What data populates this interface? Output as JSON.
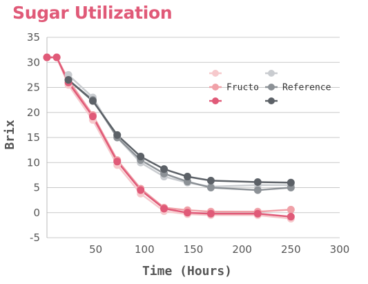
{
  "chart_data": {
    "type": "line",
    "title": "Sugar Utilization",
    "xlabel": "Time (Hours)",
    "ylabel": "Brix",
    "xlim": [
      0,
      300
    ],
    "ylim": [
      -5,
      35
    ],
    "xticks": [
      50,
      100,
      150,
      200,
      250,
      300
    ],
    "yticks": [
      -5,
      0,
      5,
      10,
      15,
      20,
      25,
      30,
      35
    ],
    "grid": "horizontal",
    "legend_position": "top-right",
    "legend_columns": [
      {
        "header": "",
        "entries": [
          "",
          "Fructo",
          ""
        ]
      },
      {
        "header": "",
        "entries": [
          "",
          "Reference",
          ""
        ]
      }
    ],
    "series": [
      {
        "name": "",
        "group": "Fructo",
        "color": "#f6c9cc",
        "x": [
          0,
          10,
          22,
          47,
          72,
          96,
          120,
          144,
          168,
          216,
          250
        ],
        "y": [
          31,
          31,
          25.5,
          18.5,
          9.5,
          3.8,
          0.3,
          -0.3,
          -0.5,
          -0.5,
          -1.2
        ]
      },
      {
        "name": "Fructo",
        "group": "Fructo",
        "color": "#f0a1a8",
        "x": [
          0,
          10,
          22,
          47,
          72,
          96,
          120,
          144,
          168,
          216,
          250
        ],
        "y": [
          31,
          31,
          26.5,
          19.5,
          10.5,
          4.8,
          1.0,
          0.5,
          0.2,
          0.2,
          0.6
        ]
      },
      {
        "name": "",
        "group": "Fructo",
        "color": "#e05a78",
        "x": [
          0,
          10,
          22,
          47,
          72,
          96,
          120,
          144,
          168,
          216,
          250
        ],
        "y": [
          31,
          31,
          26,
          19.2,
          10.2,
          4.5,
          0.8,
          0,
          -0.2,
          -0.2,
          -0.8
        ]
      },
      {
        "name": "",
        "group": "Reference",
        "color": "#c9ccd0",
        "x": [
          22,
          47,
          72,
          96,
          120,
          144,
          168,
          216,
          250
        ],
        "y": [
          27.5,
          23,
          15,
          10,
          7.2,
          6,
          5.2,
          5.5,
          5.5
        ]
      },
      {
        "name": "Reference",
        "group": "Reference",
        "color": "#8c9196",
        "x": [
          22,
          47,
          72,
          96,
          120,
          144,
          168,
          216,
          250
        ],
        "y": [
          26.5,
          22.5,
          15,
          10.5,
          7.8,
          6.2,
          5,
          4.5,
          5
        ]
      },
      {
        "name": "",
        "group": "Reference",
        "color": "#5c6167",
        "x": [
          22,
          47,
          72,
          96,
          120,
          144,
          168,
          216,
          250
        ],
        "y": [
          26.5,
          22.3,
          15.5,
          11.2,
          8.7,
          7.2,
          6.4,
          6.1,
          6
        ]
      }
    ]
  }
}
